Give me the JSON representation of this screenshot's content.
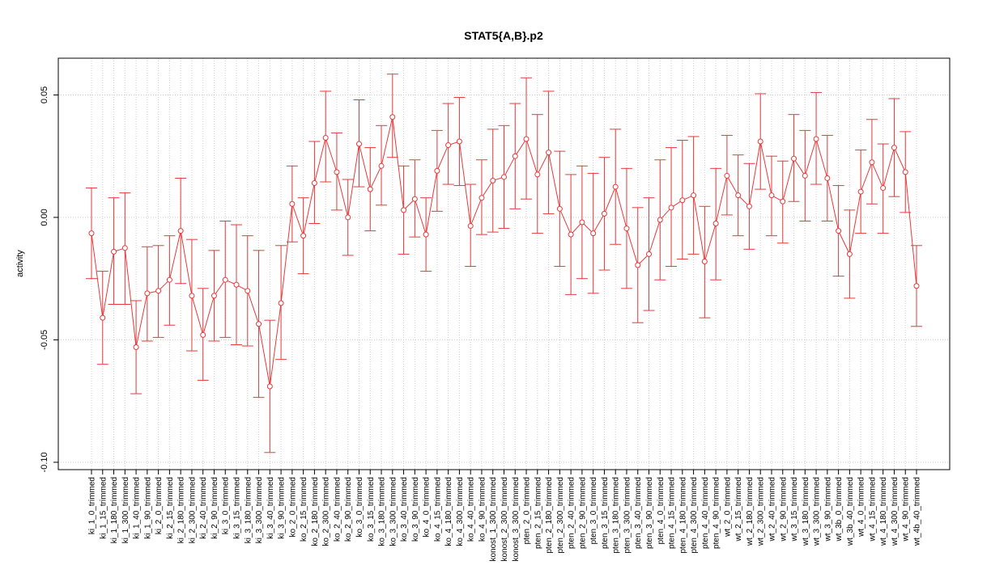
{
  "chart_data": {
    "type": "line",
    "title": "STAT5{A,B}.p2",
    "xlabel": "",
    "ylabel": "activity",
    "ylim": [
      -0.103,
      0.065
    ],
    "yticks": [
      -0.1,
      -0.05,
      0.0,
      0.05
    ],
    "ytick_labels": [
      "-0.10",
      "-0.05",
      "0.00",
      "0.05"
    ],
    "grid": true,
    "series_color": "#e8393a",
    "grid_color": "#cccccc",
    "categories": [
      "ki_1_0_trimmed",
      "ki_1_15_trimmed",
      "ki_1_180_trimmed",
      "ki_1_300_trimmed",
      "ki_1_40_trimmed",
      "ki_1_90_trimmed",
      "ki_2_0_trimmed",
      "ki_2_15_trimmed",
      "ki_2_180_trimmed",
      "ki_2_300_trimmed",
      "ki_2_40_trimmed",
      "ki_2_90_trimmed",
      "ki_3_0_trimmed",
      "ki_3_15_trimmed",
      "ki_3_180_trimmed",
      "ki_3_300_trimmed",
      "ki_3_40_trimmed",
      "ki_3_90_trimmed",
      "ko_2_0_trimmed",
      "ko_2_15_trimmed",
      "ko_2_180_trimmed",
      "ko_2_300_trimmed",
      "ko_2_40_trimmed",
      "ko_2_90_trimmed",
      "ko_3_0_trimmed",
      "ko_3_15_trimmed",
      "ko_3_180_trimmed",
      "ko_3_300_trimmed",
      "ko_3_40_trimmed",
      "ko_3_90_trimmed",
      "ko_4_0_trimmed",
      "ko_4_15_trimmed",
      "ko_4_180_trimmed",
      "ko_4_300_trimmed",
      "ko_4_40_trimmed",
      "ko_4_90_trimmed",
      "konost_1_300_trimmed",
      "konost_2_300_trimmed",
      "konost_3_300_trimmed",
      "pten_2_0_trimmed",
      "pten_2_15_trimmed",
      "pten_2_180_trimmed",
      "pten_2_300_trimmed",
      "pten_2_40_trimmed",
      "pten_2_90_trimmed",
      "pten_3_0_trimmed",
      "pten_3_15_trimmed",
      "pten_3_180_trimmed",
      "pten_3_300_trimmed",
      "pten_3_40_trimmed",
      "pten_3_90_trimmed",
      "pten_4_0_trimmed",
      "pten_4_15_trimmed",
      "pten_4_180_trimmed",
      "pten_4_300_trimmed",
      "pten_4_40_trimmed",
      "pten_4_90_trimmed",
      "wt_2_0_trimmed",
      "wt_2_15_trimmed",
      "wt_2_180_trimmed",
      "wt_2_300_trimmed",
      "wt_2_40_trimmed",
      "wt_2_90_trimmed",
      "wt_3_15_trimmed",
      "wt_3_180_trimmed",
      "wt_3_300_trimmed",
      "wt_3_90_trimmed",
      "wt_3b_0_trimmed",
      "wt_3b_40_trimmed",
      "wt_4_0_trimmed",
      "wt_4_15_trimmed",
      "wt_4_180_trimmed",
      "wt_4_300_trimmed",
      "wt_4_90_trimmed",
      "wt_4b_40_trimmed"
    ],
    "values": [
      -0.0065,
      -0.041,
      -0.014,
      -0.0125,
      -0.053,
      -0.031,
      -0.03,
      -0.0255,
      -0.0055,
      -0.032,
      -0.048,
      -0.032,
      -0.0255,
      -0.0275,
      -0.03,
      -0.0435,
      -0.069,
      -0.035,
      0.0055,
      -0.0075,
      0.014,
      0.0325,
      0.0185,
      0.0,
      0.03,
      0.0115,
      0.021,
      0.041,
      0.003,
      0.0075,
      -0.007,
      0.019,
      0.0295,
      0.031,
      -0.0035,
      0.008,
      0.015,
      0.0165,
      0.025,
      0.032,
      0.0175,
      0.0265,
      0.0035,
      -0.007,
      -0.002,
      -0.0065,
      0.0015,
      0.0125,
      -0.0045,
      -0.0195,
      -0.015,
      -0.001,
      0.004,
      0.007,
      0.009,
      -0.018,
      -0.0025,
      0.017,
      0.009,
      0.0045,
      0.031,
      0.009,
      0.0065,
      0.024,
      0.017,
      0.032,
      0.016,
      -0.0055,
      -0.015,
      0.0105,
      0.0225,
      0.012,
      0.0285,
      0.0185,
      -0.028
    ],
    "upper": [
      0.012,
      -0.022,
      0.008,
      0.01,
      -0.034,
      -0.012,
      -0.0115,
      -0.0075,
      0.016,
      -0.009,
      -0.029,
      -0.0135,
      -0.0015,
      -0.003,
      -0.0075,
      -0.0135,
      -0.042,
      -0.0115,
      0.021,
      0.008,
      0.031,
      0.0515,
      0.0345,
      0.0155,
      0.048,
      0.0285,
      0.0375,
      0.0585,
      0.021,
      0.0235,
      0.008,
      0.0355,
      0.0465,
      0.049,
      0.0135,
      0.0235,
      0.036,
      0.0375,
      0.0465,
      0.057,
      0.042,
      0.0515,
      0.027,
      0.0175,
      0.021,
      0.018,
      0.0245,
      0.036,
      0.02,
      0.004,
      0.008,
      0.0235,
      0.0285,
      0.0315,
      0.033,
      0.0045,
      0.02,
      0.0335,
      0.0255,
      0.022,
      0.0505,
      0.025,
      0.023,
      0.042,
      0.0355,
      0.051,
      0.0335,
      0.013,
      0.003,
      0.0275,
      0.04,
      0.03,
      0.0485,
      0.035,
      -0.0115
    ],
    "lower": [
      -0.025,
      -0.06,
      -0.0355,
      -0.0355,
      -0.072,
      -0.0505,
      -0.049,
      -0.044,
      -0.027,
      -0.0545,
      -0.0665,
      -0.0505,
      -0.049,
      -0.052,
      -0.0525,
      -0.0735,
      -0.096,
      -0.058,
      -0.01,
      -0.023,
      -0.0025,
      0.0145,
      0.003,
      -0.0155,
      0.0125,
      -0.0055,
      0.005,
      0.0245,
      -0.015,
      -0.008,
      -0.022,
      0.0025,
      0.0135,
      0.013,
      -0.02,
      -0.007,
      -0.006,
      -0.0045,
      0.0035,
      0.0075,
      -0.0065,
      0.0015,
      -0.02,
      -0.0315,
      -0.025,
      -0.031,
      -0.0215,
      -0.011,
      -0.029,
      -0.043,
      -0.038,
      -0.0255,
      -0.02,
      -0.017,
      -0.015,
      -0.041,
      -0.0255,
      0.001,
      -0.0075,
      -0.013,
      0.0115,
      -0.0075,
      -0.0105,
      0.0065,
      -0.0015,
      0.0135,
      -0.0015,
      -0.024,
      -0.033,
      -0.0065,
      0.0055,
      -0.0065,
      0.0085,
      0.002,
      -0.0445
    ]
  }
}
